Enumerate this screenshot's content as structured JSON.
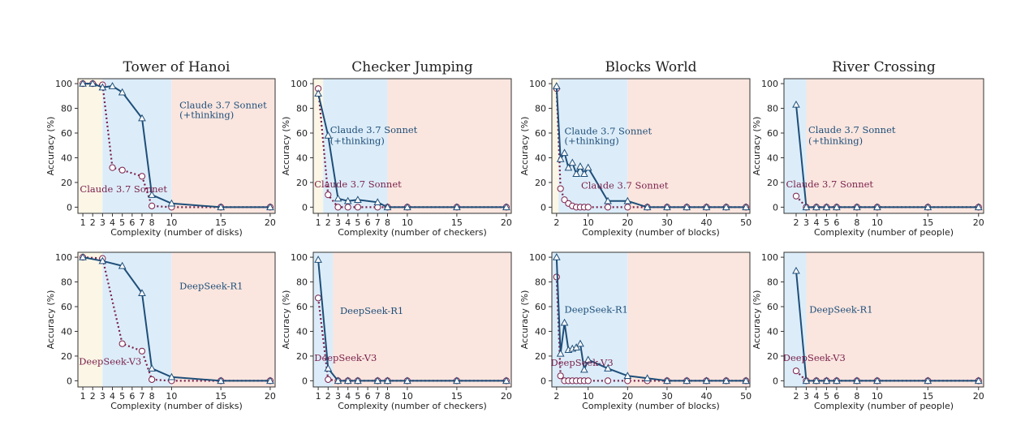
{
  "colors": {
    "thinking": "#1f4e79",
    "nonthinking": "#7a1f4a",
    "regime_low": "#fbf6e6",
    "regime_mid": "#dcedf9",
    "regime_high": "#fae6df"
  },
  "chart_data": [
    {
      "type": "line",
      "title": "Tower of Hanoi",
      "ylabel": "Accuracy (%)",
      "xlabel": "Complexity (number of disks)",
      "ylim": [
        0,
        100
      ],
      "yticks": [
        0,
        20,
        40,
        60,
        80,
        100
      ],
      "xticks": [
        1,
        2,
        3,
        4,
        5,
        6,
        7,
        8,
        10,
        15,
        20
      ],
      "regimes": [
        [
          0.5,
          3
        ],
        [
          3,
          10
        ],
        [
          10,
          20.5
        ]
      ],
      "annotations": [
        {
          "text": "Claude 3.7 Sonnet",
          "x": 10.8,
          "y": 80
        },
        {
          "text": "(+thinking)",
          "x": 10.8,
          "y": 72
        },
        {
          "text": "Claude 3.7 Sonnet",
          "x": 0.7,
          "y": 12
        }
      ],
      "series": [
        {
          "name": "Claude 3.7 Sonnet (+thinking)",
          "style": "thinking",
          "x": [
            1,
            2,
            3,
            4,
            5,
            7,
            8,
            10,
            15,
            20
          ],
          "y": [
            100,
            100,
            97,
            98,
            93,
            72,
            10,
            3,
            0,
            0
          ]
        },
        {
          "name": "Claude 3.7 Sonnet",
          "style": "nonthinking",
          "x": [
            1,
            2,
            3,
            4,
            5,
            7,
            8,
            10,
            15,
            20
          ],
          "y": [
            100,
            100,
            99,
            32,
            30,
            25,
            1,
            0,
            0,
            0
          ]
        }
      ]
    },
    {
      "type": "line",
      "title": "Checker Jumping",
      "ylabel": "Accuracy (%)",
      "xlabel": "Complexity (number of checkers)",
      "ylim": [
        0,
        100
      ],
      "yticks": [
        0,
        20,
        40,
        60,
        80,
        100
      ],
      "xticks": [
        1,
        2,
        3,
        4,
        5,
        6,
        7,
        8,
        10,
        15,
        20
      ],
      "regimes": [
        [
          0.5,
          1.5
        ],
        [
          1.5,
          8
        ],
        [
          8,
          20.5
        ]
      ],
      "annotations": [
        {
          "text": "Claude 3.7 Sonnet",
          "x": 2.2,
          "y": 60
        },
        {
          "text": "(+thinking)",
          "x": 2.2,
          "y": 51
        },
        {
          "text": "Claude 3.7 Sonnet",
          "x": 0.6,
          "y": 16
        }
      ],
      "series": [
        {
          "name": "Claude 3.7 Sonnet (+thinking)",
          "style": "thinking",
          "x": [
            1,
            2,
            3,
            4,
            5,
            7,
            8,
            10,
            15,
            20
          ],
          "y": [
            92,
            58,
            7,
            5,
            6,
            4,
            0,
            0,
            0,
            0
          ]
        },
        {
          "name": "Claude 3.7 Sonnet",
          "style": "nonthinking",
          "x": [
            1,
            2,
            3,
            4,
            5,
            7,
            8,
            10,
            15,
            20
          ],
          "y": [
            96,
            10,
            0,
            0,
            0,
            0,
            0,
            0,
            0,
            0
          ]
        }
      ]
    },
    {
      "type": "line",
      "title": "Blocks World",
      "ylabel": "Accuracy (%)",
      "xlabel": "Complexity (number of blocks)",
      "ylim": [
        0,
        100
      ],
      "yticks": [
        0,
        20,
        40,
        60,
        80,
        100
      ],
      "xticks": [
        2,
        10,
        20,
        30,
        40,
        50
      ],
      "regimes": [
        [
          0.8,
          2.5
        ],
        [
          2.5,
          20
        ],
        [
          20,
          51
        ]
      ],
      "annotations": [
        {
          "text": "Claude 3.7 Sonnet",
          "x": 4,
          "y": 59
        },
        {
          "text": "(+thinking)",
          "x": 4,
          "y": 51
        },
        {
          "text": "Claude 3.7 Sonnet",
          "x": 8.2,
          "y": 15
        }
      ],
      "series": [
        {
          "name": "Claude 3.7 Sonnet (+thinking)",
          "style": "thinking",
          "x": [
            2,
            3,
            4,
            5,
            6,
            7,
            8,
            9,
            10,
            15,
            20,
            25,
            30,
            35,
            40,
            45,
            50
          ],
          "y": [
            98,
            39,
            44,
            32,
            36,
            27,
            33,
            27,
            32,
            5,
            5,
            0,
            0,
            0,
            0,
            0,
            0
          ]
        },
        {
          "name": "Claude 3.7 Sonnet",
          "style": "nonthinking",
          "x": [
            2,
            3,
            4,
            5,
            6,
            7,
            8,
            9,
            10,
            15,
            20,
            25,
            30,
            35,
            40,
            45,
            50
          ],
          "y": [
            96,
            15,
            6,
            3,
            1,
            0,
            0,
            0,
            0,
            0,
            0,
            0,
            0,
            0,
            0,
            0,
            0
          ]
        }
      ]
    },
    {
      "type": "line",
      "title": "River Crossing",
      "ylabel": "Accuracy (%)",
      "xlabel": "Complexity (number of people)",
      "ylim": [
        0,
        100
      ],
      "yticks": [
        0,
        20,
        40,
        60,
        80,
        100
      ],
      "xticks": [
        2,
        3,
        4,
        5,
        6,
        8,
        10,
        15,
        20
      ],
      "regimes": [
        [
          0.8,
          3
        ],
        [
          3,
          20.5
        ]
      ],
      "annotations": [
        {
          "text": "Claude 3.7 Sonnet",
          "x": 3.2,
          "y": 60
        },
        {
          "text": "(+thinking)",
          "x": 3.2,
          "y": 51
        },
        {
          "text": "Claude 3.7 Sonnet",
          "x": 1.0,
          "y": 16
        }
      ],
      "series": [
        {
          "name": "Claude 3.7 Sonnet (+thinking)",
          "style": "thinking",
          "x": [
            2,
            3,
            4,
            5,
            6,
            8,
            10,
            15,
            20
          ],
          "y": [
            83,
            0,
            0,
            0,
            0,
            0,
            0,
            0,
            0
          ]
        },
        {
          "name": "Claude 3.7 Sonnet",
          "style": "nonthinking",
          "x": [
            2,
            3,
            4,
            5,
            6,
            8,
            10,
            15,
            20
          ],
          "y": [
            9,
            0,
            0,
            0,
            0,
            0,
            0,
            0,
            0
          ]
        }
      ]
    },
    {
      "type": "line",
      "title": "",
      "ylabel": "Accuracy (%)",
      "xlabel": "Complexity (number of disks)",
      "ylim": [
        0,
        100
      ],
      "yticks": [
        0,
        20,
        40,
        60,
        80,
        100
      ],
      "xticks": [
        1,
        2,
        3,
        4,
        5,
        6,
        7,
        8,
        10,
        15,
        20
      ],
      "regimes": [
        [
          0.5,
          3
        ],
        [
          3,
          10
        ],
        [
          10,
          20.5
        ]
      ],
      "annotations": [
        {
          "text": "DeepSeek-R1",
          "x": 10.8,
          "y": 74
        },
        {
          "text": "DeepSeek-V3",
          "x": 0.6,
          "y": 13
        }
      ],
      "series": [
        {
          "name": "DeepSeek-R1",
          "style": "thinking",
          "x": [
            1,
            3,
            5,
            7,
            8,
            10,
            15,
            20
          ],
          "y": [
            100,
            97,
            93,
            71,
            10,
            3,
            0,
            0
          ]
        },
        {
          "name": "DeepSeek-V3",
          "style": "nonthinking",
          "x": [
            1,
            3,
            5,
            7,
            8,
            10,
            15,
            20
          ],
          "y": [
            100,
            99,
            30,
            24,
            1,
            0,
            0,
            0
          ]
        }
      ]
    },
    {
      "type": "line",
      "title": "",
      "ylabel": "Accuracy (%)",
      "xlabel": "Complexity (number of checkers)",
      "ylim": [
        0,
        100
      ],
      "yticks": [
        0,
        20,
        40,
        60,
        80,
        100
      ],
      "xticks": [
        1,
        2,
        3,
        4,
        5,
        6,
        7,
        8,
        10,
        15,
        20
      ],
      "regimes": [
        [
          0.5,
          2.5
        ],
        [
          2.5,
          20.5
        ]
      ],
      "annotations": [
        {
          "text": "DeepSeek-R1",
          "x": 3.2,
          "y": 54
        },
        {
          "text": "DeepSeek-V3",
          "x": 0.6,
          "y": 16
        }
      ],
      "series": [
        {
          "name": "DeepSeek-R1",
          "style": "thinking",
          "x": [
            1,
            2,
            3,
            4,
            5,
            7,
            8,
            10,
            15,
            20
          ],
          "y": [
            98,
            10,
            0,
            0,
            0,
            0,
            0,
            0,
            0,
            0
          ]
        },
        {
          "name": "DeepSeek-V3",
          "style": "nonthinking",
          "x": [
            1,
            2,
            3,
            4,
            5,
            7,
            8,
            10,
            15,
            20
          ],
          "y": [
            67,
            1,
            0,
            0,
            0,
            0,
            0,
            0,
            0,
            0
          ]
        }
      ]
    },
    {
      "type": "line",
      "title": "",
      "ylabel": "Accuracy (%)",
      "xlabel": "Complexity (number of blocks)",
      "ylim": [
        0,
        100
      ],
      "yticks": [
        0,
        20,
        40,
        60,
        80,
        100
      ],
      "xticks": [
        2,
        10,
        20,
        30,
        40,
        50
      ],
      "regimes": [
        [
          0.8,
          20
        ],
        [
          20,
          51
        ]
      ],
      "annotations": [
        {
          "text": "DeepSeek-R1",
          "x": 4,
          "y": 55
        },
        {
          "text": "DeepSeek-V3",
          "x": 0.5,
          "y": 12
        }
      ],
      "series": [
        {
          "name": "DeepSeek-R1",
          "style": "thinking",
          "x": [
            2,
            3,
            4,
            5,
            6,
            7,
            8,
            9,
            10,
            15,
            20,
            25,
            30,
            35,
            40,
            45,
            50
          ],
          "y": [
            100,
            22,
            47,
            25,
            26,
            27,
            30,
            9,
            17,
            10,
            4,
            2,
            0,
            0,
            0,
            0,
            0
          ]
        },
        {
          "name": "DeepSeek-V3",
          "style": "nonthinking",
          "x": [
            2,
            3,
            4,
            5,
            6,
            7,
            8,
            9,
            10,
            15,
            20,
            25,
            30,
            35,
            40,
            45,
            50
          ],
          "y": [
            84,
            4,
            0,
            0,
            0,
            0,
            0,
            0,
            0,
            0,
            0,
            0,
            0,
            0,
            0,
            0,
            0
          ]
        }
      ]
    },
    {
      "type": "line",
      "title": "",
      "ylabel": "Accuracy (%)",
      "xlabel": "Complexity (number of people)",
      "ylim": [
        0,
        100
      ],
      "yticks": [
        0,
        20,
        40,
        60,
        80,
        100
      ],
      "xticks": [
        2,
        3,
        4,
        5,
        6,
        8,
        10,
        15,
        20
      ],
      "regimes": [
        [
          0.8,
          3
        ],
        [
          3,
          20.5
        ]
      ],
      "annotations": [
        {
          "text": "DeepSeek-R1",
          "x": 3.3,
          "y": 55
        },
        {
          "text": "DeepSeek-V3",
          "x": 0.7,
          "y": 16
        }
      ],
      "series": [
        {
          "name": "DeepSeek-R1",
          "style": "thinking",
          "x": [
            2,
            3,
            4,
            5,
            6,
            8,
            10,
            15,
            20
          ],
          "y": [
            89,
            0,
            0,
            0,
            0,
            0,
            0,
            0,
            0
          ]
        },
        {
          "name": "DeepSeek-V3",
          "style": "nonthinking",
          "x": [
            2,
            3,
            4,
            5,
            6,
            8,
            10,
            15,
            20
          ],
          "y": [
            8,
            0,
            0,
            0,
            0,
            0,
            0,
            0,
            0
          ]
        }
      ]
    }
  ]
}
